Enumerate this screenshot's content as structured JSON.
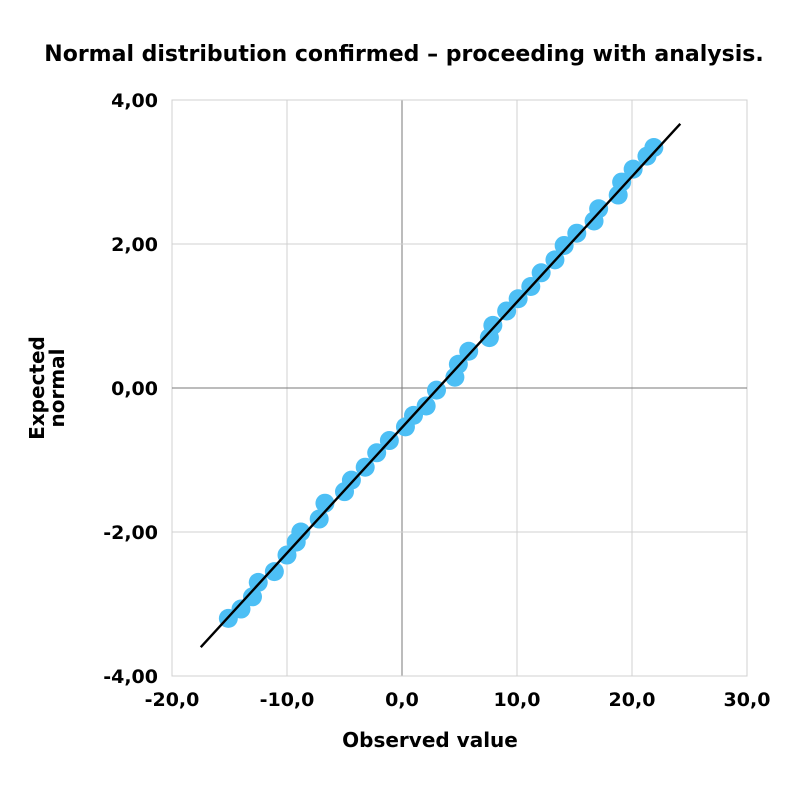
{
  "chart_data": {
    "type": "scatter",
    "title": "Normal distribution confirmed – proceeding with analysis.",
    "xlabel": "Observed value",
    "ylabel_lines": [
      "Expected",
      "normal"
    ],
    "xlim": [
      -20,
      30
    ],
    "ylim": [
      -4,
      4
    ],
    "x_ticks": [
      -20,
      -10,
      0,
      10,
      20,
      30
    ],
    "x_tick_labels": [
      "-20,0",
      "-10,0",
      "0,0",
      "10,0",
      "20,0",
      "30,0"
    ],
    "y_ticks": [
      4,
      2,
      0,
      -2,
      -4
    ],
    "y_tick_labels": [
      "4,00",
      "2,00",
      "0,00",
      "-2,00",
      "-4,00"
    ],
    "grid": true,
    "colors": {
      "points": "#4dbff5",
      "line": "#000000"
    },
    "series": [
      {
        "points": [
          [
            -15.1,
            -3.2
          ],
          [
            -14.0,
            -3.07
          ],
          [
            -13.0,
            -2.9
          ],
          [
            -12.5,
            -2.7
          ],
          [
            -11.1,
            -2.55
          ],
          [
            -10.0,
            -2.32
          ],
          [
            -9.2,
            -2.14
          ],
          [
            -8.8,
            -2.0
          ],
          [
            -7.2,
            -1.82
          ],
          [
            -6.7,
            -1.6
          ],
          [
            -5.0,
            -1.44
          ],
          [
            -4.4,
            -1.28
          ],
          [
            -3.2,
            -1.1
          ],
          [
            -2.2,
            -0.9
          ],
          [
            -1.1,
            -0.73
          ],
          [
            0.3,
            -0.54
          ],
          [
            1.0,
            -0.38
          ],
          [
            2.1,
            -0.25
          ],
          [
            3.0,
            -0.03
          ],
          [
            4.6,
            0.15
          ],
          [
            4.9,
            0.33
          ],
          [
            5.8,
            0.51
          ],
          [
            7.6,
            0.7
          ],
          [
            7.9,
            0.87
          ],
          [
            9.1,
            1.07
          ],
          [
            10.1,
            1.24
          ],
          [
            11.2,
            1.41
          ],
          [
            12.1,
            1.6
          ],
          [
            13.3,
            1.78
          ],
          [
            14.1,
            1.98
          ],
          [
            15.2,
            2.15
          ],
          [
            16.7,
            2.32
          ],
          [
            17.1,
            2.49
          ],
          [
            18.8,
            2.68
          ],
          [
            19.1,
            2.86
          ],
          [
            20.1,
            3.04
          ],
          [
            21.3,
            3.22
          ],
          [
            21.9,
            3.34
          ]
        ]
      }
    ],
    "trendline": {
      "from": [
        -17.5,
        -3.6
      ],
      "to": [
        24.2,
        3.67
      ]
    }
  }
}
